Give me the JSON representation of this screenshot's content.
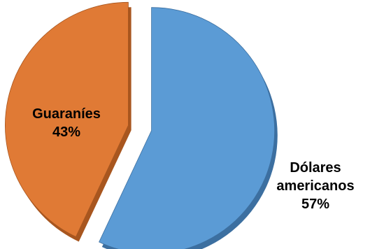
{
  "chart_data": {
    "type": "pie",
    "slices": [
      {
        "label": "Guaraníes",
        "value": 43,
        "pct_label": "43%",
        "color": "#E07A35",
        "edge": "#A8561F"
      },
      {
        "label": "Dólares americanos",
        "value": 57,
        "pct_label": "57%",
        "color": "#5B9BD5",
        "edge": "#3C6FA0"
      }
    ],
    "exploded": true,
    "style": "3d"
  },
  "labels": {
    "guaranies": {
      "name": "Guaraníes",
      "pct": "43%"
    },
    "dolares": {
      "line1": "Dólares",
      "line2": "americanos",
      "pct": "57%"
    }
  }
}
